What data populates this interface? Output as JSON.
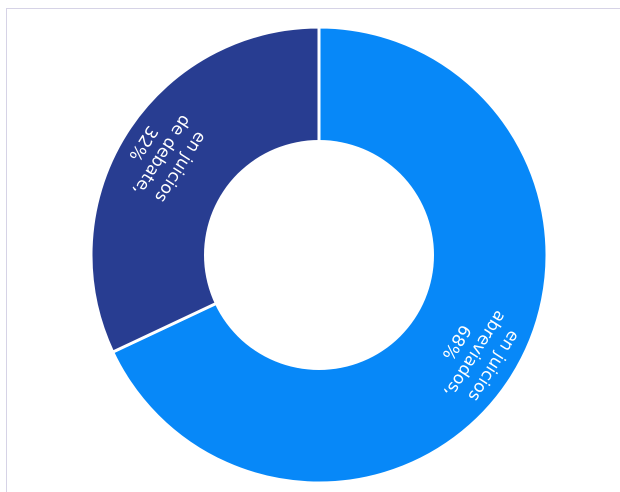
{
  "chart_data": {
    "type": "pie",
    "donut": true,
    "title": "",
    "slices": [
      {
        "label_lines": [
          "en juicios",
          "abreviados,",
          "68%"
        ],
        "value": 68,
        "color": "#0788f8"
      },
      {
        "label_lines": [
          "en juicios",
          "de debate,",
          "32%"
        ],
        "value": 32,
        "color": "#283d91"
      }
    ],
    "background": "#ffffff",
    "legend": "none"
  }
}
